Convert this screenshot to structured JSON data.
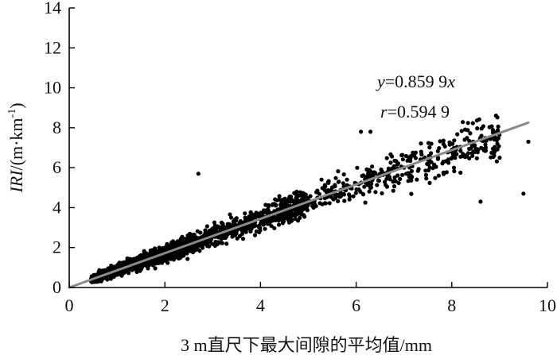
{
  "chart_data": {
    "type": "scatter",
    "title": "",
    "xlabel": "3 m直尺下最大间隙的平均值/mm",
    "ylabel": {
      "italic": "IRI",
      "rest": "/(m·km",
      "sup": "-1",
      "close": ")"
    },
    "xlim": [
      0,
      10
    ],
    "ylim": [
      0,
      14
    ],
    "x_ticks": [
      "0",
      "2",
      "4",
      "6",
      "8",
      "10"
    ],
    "y_ticks": [
      "0",
      "2",
      "4",
      "6",
      "8",
      "10",
      "12",
      "14"
    ],
    "grid": false,
    "legend": "none",
    "series": [
      {
        "marker": "circle",
        "color": "#000000",
        "points_sample": [
          [
            0.5,
            0.4
          ],
          [
            0.8,
            0.7
          ],
          [
            1.0,
            0.9
          ],
          [
            1.2,
            1.0
          ],
          [
            1.5,
            1.3
          ],
          [
            2.0,
            1.7
          ],
          [
            2.5,
            2.1
          ],
          [
            3.0,
            2.6
          ],
          [
            3.5,
            3.0
          ],
          [
            4.0,
            3.4
          ],
          [
            4.5,
            3.9
          ],
          [
            5.0,
            4.3
          ],
          [
            5.5,
            4.7
          ],
          [
            6.0,
            5.2
          ],
          [
            6.5,
            5.6
          ],
          [
            7.0,
            6.0
          ],
          [
            7.5,
            6.4
          ],
          [
            8.0,
            6.9
          ],
          [
            2.7,
            5.7
          ],
          [
            6.1,
            7.8
          ],
          [
            6.3,
            7.8
          ],
          [
            8.6,
            4.3
          ],
          [
            9.5,
            4.7
          ],
          [
            9.6,
            7.3
          ],
          [
            9.0,
            6.5
          ]
        ]
      }
    ],
    "fit_line": {
      "slope": 0.8599,
      "x_range": [
        0,
        9.6
      ],
      "color": "#8a8a8a"
    },
    "annotations": [
      {
        "var": "y",
        "text": "=0.859 9",
        "suffix": "x"
      },
      {
        "var": "r",
        "text": "=0.594 9",
        "suffix": ""
      }
    ]
  }
}
